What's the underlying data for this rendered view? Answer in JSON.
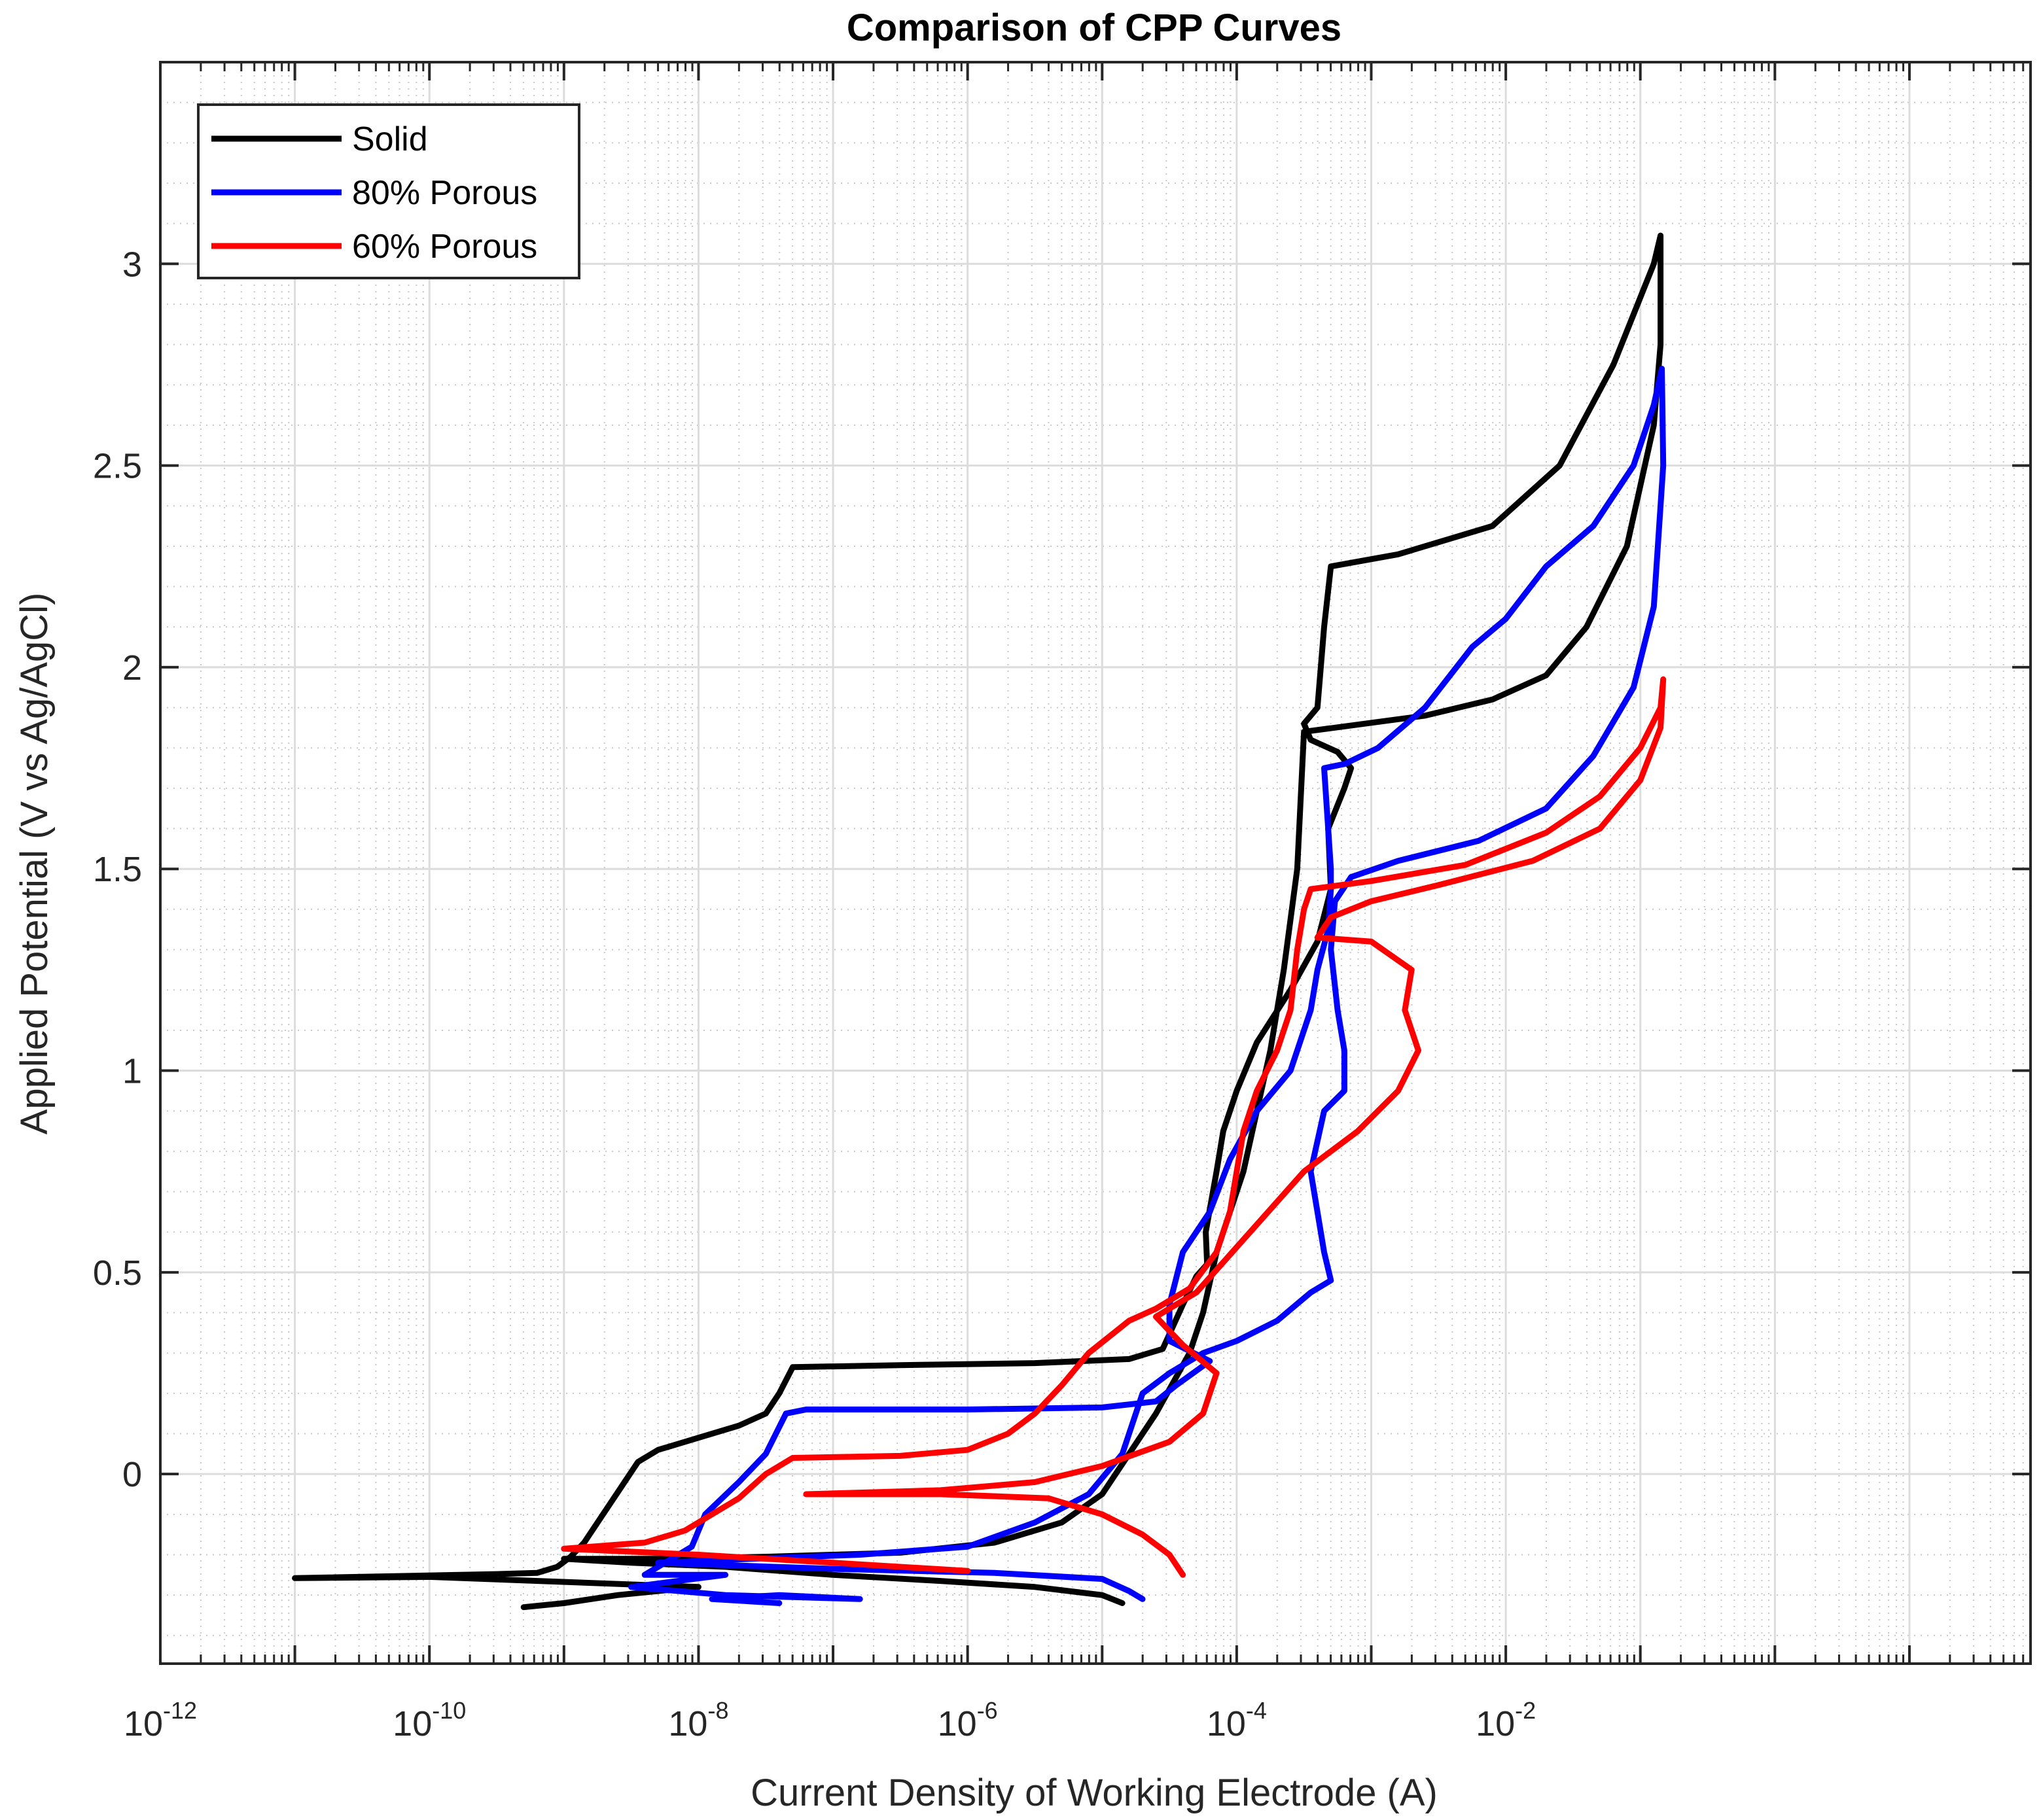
{
  "chart_data": {
    "type": "line",
    "title": "Comparison of CPP Curves",
    "xlabel": "Current Density of Working Electrode (A)",
    "ylabel": "Applied Potential (V vs Ag/AgCl)",
    "xscale": "log",
    "xlim_exp": [
      -12,
      1.9
    ],
    "ylim": [
      -0.47,
      3.5
    ],
    "grid": true,
    "minor_grid": true,
    "x_ticks": [
      {
        "base": "10",
        "exp": "-12",
        "value": -12
      },
      {
        "base": "10",
        "exp": "-10",
        "value": -10
      },
      {
        "base": "10",
        "exp": "-8",
        "value": -8
      },
      {
        "base": "10",
        "exp": "-6",
        "value": -6
      },
      {
        "base": "10",
        "exp": "-4",
        "value": -4
      },
      {
        "base": "10",
        "exp": "-2",
        "value": -2
      }
    ],
    "y_ticks": [
      {
        "label": "0",
        "value": 0
      },
      {
        "label": "0.5",
        "value": 0.5
      },
      {
        "label": "1",
        "value": 1
      },
      {
        "label": "1.5",
        "value": 1.5
      },
      {
        "label": "2",
        "value": 2
      },
      {
        "label": "2.5",
        "value": 2.5
      },
      {
        "label": "3",
        "value": 3
      }
    ],
    "legend_position": "top-left",
    "series": [
      {
        "name": "Solid",
        "color": "#000000",
        "points": [
          [
            -9.3,
            -0.33
          ],
          [
            -9.0,
            -0.32
          ],
          [
            -8.6,
            -0.3
          ],
          [
            -8.3,
            -0.29
          ],
          [
            -8.0,
            -0.28
          ],
          [
            -10.0,
            -0.255
          ],
          [
            -11.0,
            -0.258
          ],
          [
            -9.5,
            -0.248
          ],
          [
            -9.2,
            -0.245
          ],
          [
            -9.05,
            -0.23
          ],
          [
            -8.95,
            -0.205
          ],
          [
            -8.85,
            -0.17
          ],
          [
            -8.75,
            -0.12
          ],
          [
            -8.65,
            -0.07
          ],
          [
            -8.55,
            -0.02
          ],
          [
            -8.45,
            0.03
          ],
          [
            -8.3,
            0.06
          ],
          [
            -8.0,
            0.09
          ],
          [
            -7.7,
            0.12
          ],
          [
            -7.5,
            0.15
          ],
          [
            -7.4,
            0.2
          ],
          [
            -7.3,
            0.265
          ],
          [
            -6.5,
            0.27
          ],
          [
            -5.5,
            0.275
          ],
          [
            -4.8,
            0.285
          ],
          [
            -4.55,
            0.31
          ],
          [
            -4.4,
            0.42
          ],
          [
            -4.3,
            0.49
          ],
          [
            -4.22,
            0.52
          ],
          [
            -4.23,
            0.6
          ],
          [
            -4.15,
            0.75
          ],
          [
            -4.1,
            0.85
          ],
          [
            -4.0,
            0.95
          ],
          [
            -3.85,
            1.07
          ],
          [
            -3.6,
            1.2
          ],
          [
            -3.4,
            1.32
          ],
          [
            -3.3,
            1.45
          ],
          [
            -3.32,
            1.6
          ],
          [
            -3.2,
            1.7
          ],
          [
            -3.15,
            1.75
          ],
          [
            -3.25,
            1.79
          ],
          [
            -3.45,
            1.82
          ],
          [
            -3.5,
            1.86
          ],
          [
            -3.4,
            1.9
          ],
          [
            -3.35,
            2.1
          ],
          [
            -3.3,
            2.25
          ],
          [
            -2.8,
            2.28
          ],
          [
            -2.1,
            2.35
          ],
          [
            -1.6,
            2.5
          ],
          [
            -1.2,
            2.75
          ],
          [
            -0.9,
            3.0
          ],
          [
            -0.85,
            3.07
          ],
          [
            -0.85,
            2.8
          ],
          [
            -0.9,
            2.6
          ],
          [
            -1.1,
            2.3
          ],
          [
            -1.4,
            2.1
          ],
          [
            -1.7,
            1.98
          ],
          [
            -2.1,
            1.92
          ],
          [
            -2.6,
            1.88
          ],
          [
            -3.5,
            1.84
          ],
          [
            -3.55,
            1.5
          ],
          [
            -3.65,
            1.25
          ],
          [
            -3.75,
            1.05
          ],
          [
            -3.85,
            0.9
          ],
          [
            -3.95,
            0.75
          ],
          [
            -4.15,
            0.55
          ],
          [
            -4.25,
            0.4
          ],
          [
            -4.35,
            0.3
          ],
          [
            -4.6,
            0.15
          ],
          [
            -4.8,
            0.05
          ],
          [
            -5.0,
            -0.05
          ],
          [
            -5.3,
            -0.12
          ],
          [
            -5.8,
            -0.17
          ],
          [
            -6.5,
            -0.195
          ],
          [
            -7.5,
            -0.205
          ],
          [
            -8.3,
            -0.21
          ],
          [
            -9.0,
            -0.21
          ],
          [
            -8.5,
            -0.22
          ],
          [
            -7.8,
            -0.23
          ],
          [
            -7.0,
            -0.25
          ],
          [
            -6.2,
            -0.265
          ],
          [
            -5.5,
            -0.28
          ],
          [
            -5.0,
            -0.3
          ],
          [
            -4.85,
            -0.32
          ]
        ]
      },
      {
        "name": "80% Porous",
        "color": "#0000ff",
        "points": [
          [
            -7.4,
            -0.32
          ],
          [
            -7.9,
            -0.31
          ],
          [
            -7.4,
            -0.3
          ],
          [
            -6.8,
            -0.31
          ],
          [
            -7.8,
            -0.3
          ],
          [
            -8.5,
            -0.28
          ],
          [
            -7.8,
            -0.25
          ],
          [
            -8.4,
            -0.25
          ],
          [
            -8.3,
            -0.23
          ],
          [
            -8.05,
            -0.18
          ],
          [
            -7.95,
            -0.1
          ],
          [
            -7.7,
            -0.02
          ],
          [
            -7.5,
            0.05
          ],
          [
            -7.35,
            0.15
          ],
          [
            -7.2,
            0.16
          ],
          [
            -6.0,
            0.16
          ],
          [
            -5.0,
            0.165
          ],
          [
            -4.6,
            0.18
          ],
          [
            -4.45,
            0.22
          ],
          [
            -4.2,
            0.28
          ],
          [
            -4.5,
            0.33
          ],
          [
            -4.5,
            0.42
          ],
          [
            -4.4,
            0.55
          ],
          [
            -4.2,
            0.65
          ],
          [
            -4.05,
            0.78
          ],
          [
            -3.85,
            0.9
          ],
          [
            -3.6,
            1.0
          ],
          [
            -3.45,
            1.15
          ],
          [
            -3.4,
            1.25
          ],
          [
            -3.32,
            1.35
          ],
          [
            -3.3,
            1.45
          ],
          [
            -3.3,
            1.5
          ],
          [
            -3.35,
            1.75
          ],
          [
            -3.2,
            1.76
          ],
          [
            -2.95,
            1.8
          ],
          [
            -2.6,
            1.9
          ],
          [
            -2.25,
            2.05
          ],
          [
            -2.0,
            2.12
          ],
          [
            -1.7,
            2.25
          ],
          [
            -1.35,
            2.35
          ],
          [
            -1.05,
            2.5
          ],
          [
            -0.9,
            2.65
          ],
          [
            -0.84,
            2.74
          ],
          [
            -0.83,
            2.5
          ],
          [
            -0.9,
            2.15
          ],
          [
            -1.05,
            1.95
          ],
          [
            -1.35,
            1.78
          ],
          [
            -1.7,
            1.65
          ],
          [
            -2.2,
            1.57
          ],
          [
            -2.8,
            1.52
          ],
          [
            -3.15,
            1.48
          ],
          [
            -3.27,
            1.42
          ],
          [
            -3.3,
            1.3
          ],
          [
            -3.25,
            1.15
          ],
          [
            -3.2,
            1.05
          ],
          [
            -3.2,
            0.95
          ],
          [
            -3.35,
            0.9
          ],
          [
            -3.45,
            0.75
          ],
          [
            -3.35,
            0.55
          ],
          [
            -3.3,
            0.48
          ],
          [
            -3.45,
            0.45
          ],
          [
            -3.7,
            0.38
          ],
          [
            -4.0,
            0.33
          ],
          [
            -4.25,
            0.3
          ],
          [
            -4.5,
            0.25
          ],
          [
            -4.7,
            0.2
          ],
          [
            -4.85,
            0.05
          ],
          [
            -5.1,
            -0.05
          ],
          [
            -5.5,
            -0.12
          ],
          [
            -6.0,
            -0.18
          ],
          [
            -6.8,
            -0.2
          ],
          [
            -7.6,
            -0.21
          ],
          [
            -8.3,
            -0.22
          ],
          [
            -7.0,
            -0.235
          ],
          [
            -5.8,
            -0.245
          ],
          [
            -5.0,
            -0.26
          ],
          [
            -4.8,
            -0.29
          ],
          [
            -4.7,
            -0.31
          ]
        ]
      },
      {
        "name": "60% Porous",
        "color": "#ff0000",
        "points": [
          [
            -6.0,
            -0.24
          ],
          [
            -7.0,
            -0.22
          ],
          [
            -8.0,
            -0.2
          ],
          [
            -9.0,
            -0.185
          ],
          [
            -8.8,
            -0.18
          ],
          [
            -8.4,
            -0.17
          ],
          [
            -8.1,
            -0.14
          ],
          [
            -7.9,
            -0.1
          ],
          [
            -7.7,
            -0.06
          ],
          [
            -7.5,
            0.0
          ],
          [
            -7.3,
            0.04
          ],
          [
            -6.5,
            0.045
          ],
          [
            -6.0,
            0.06
          ],
          [
            -5.7,
            0.1
          ],
          [
            -5.5,
            0.15
          ],
          [
            -5.3,
            0.22
          ],
          [
            -5.1,
            0.3
          ],
          [
            -4.8,
            0.38
          ],
          [
            -4.6,
            0.41
          ],
          [
            -4.35,
            0.46
          ],
          [
            -4.15,
            0.55
          ],
          [
            -4.05,
            0.65
          ],
          [
            -4.0,
            0.75
          ],
          [
            -3.95,
            0.85
          ],
          [
            -3.85,
            0.95
          ],
          [
            -3.7,
            1.05
          ],
          [
            -3.6,
            1.15
          ],
          [
            -3.55,
            1.3
          ],
          [
            -3.5,
            1.4
          ],
          [
            -3.45,
            1.45
          ],
          [
            -3.0,
            1.47
          ],
          [
            -2.3,
            1.51
          ],
          [
            -1.7,
            1.59
          ],
          [
            -1.3,
            1.68
          ],
          [
            -1.0,
            1.8
          ],
          [
            -0.85,
            1.9
          ],
          [
            -0.83,
            1.97
          ],
          [
            -0.85,
            1.85
          ],
          [
            -1.0,
            1.72
          ],
          [
            -1.3,
            1.6
          ],
          [
            -1.8,
            1.52
          ],
          [
            -2.5,
            1.46
          ],
          [
            -3.0,
            1.42
          ],
          [
            -3.3,
            1.38
          ],
          [
            -3.4,
            1.33
          ],
          [
            -3.0,
            1.32
          ],
          [
            -2.7,
            1.25
          ],
          [
            -2.75,
            1.15
          ],
          [
            -2.65,
            1.05
          ],
          [
            -2.8,
            0.95
          ],
          [
            -3.1,
            0.85
          ],
          [
            -3.5,
            0.75
          ],
          [
            -3.9,
            0.6
          ],
          [
            -4.3,
            0.45
          ],
          [
            -4.6,
            0.39
          ],
          [
            -4.4,
            0.32
          ],
          [
            -4.15,
            0.25
          ],
          [
            -4.25,
            0.15
          ],
          [
            -4.5,
            0.08
          ],
          [
            -5.0,
            0.02
          ],
          [
            -5.5,
            -0.02
          ],
          [
            -6.2,
            -0.04
          ],
          [
            -7.2,
            -0.05
          ],
          [
            -6.2,
            -0.05
          ],
          [
            -5.4,
            -0.06
          ],
          [
            -5.0,
            -0.1
          ],
          [
            -4.7,
            -0.15
          ],
          [
            -4.5,
            -0.2
          ],
          [
            -4.4,
            -0.25
          ]
        ]
      }
    ]
  }
}
